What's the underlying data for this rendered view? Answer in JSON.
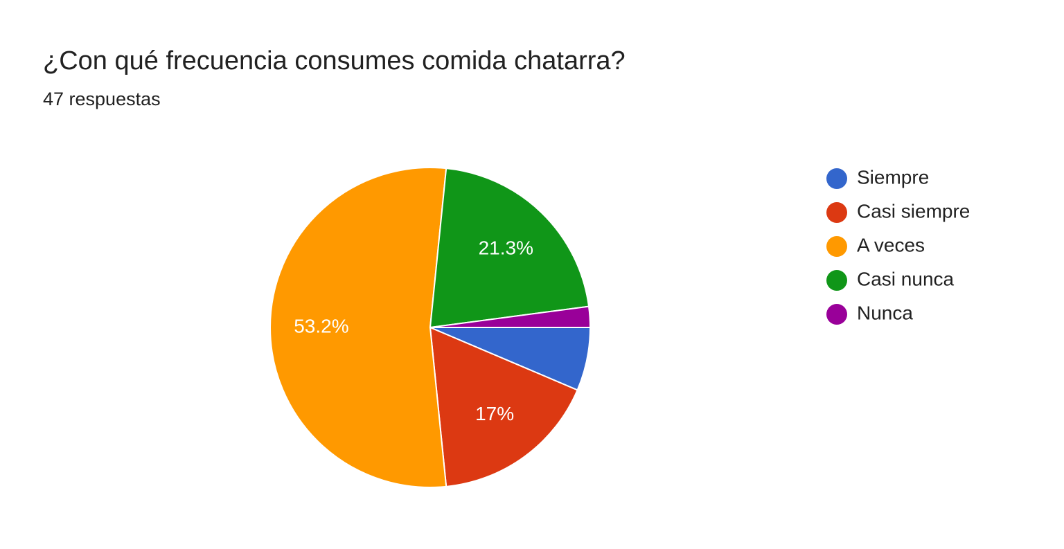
{
  "chart_data": {
    "type": "pie",
    "title": "¿Con qué frecuencia consumes comida chatarra?",
    "subtitle": "47 respuestas",
    "categories": [
      "Siempre",
      "Casi siempre",
      "A veces",
      "Casi nunca",
      "Nunca"
    ],
    "values": [
      6.4,
      17,
      53.2,
      21.3,
      2.1
    ],
    "value_labels": [
      null,
      "17%",
      "53.2%",
      "21.3%",
      null
    ],
    "colors": [
      "#3366cc",
      "#dc3912",
      "#ff9900",
      "#109618",
      "#990099"
    ],
    "legend": "right"
  }
}
